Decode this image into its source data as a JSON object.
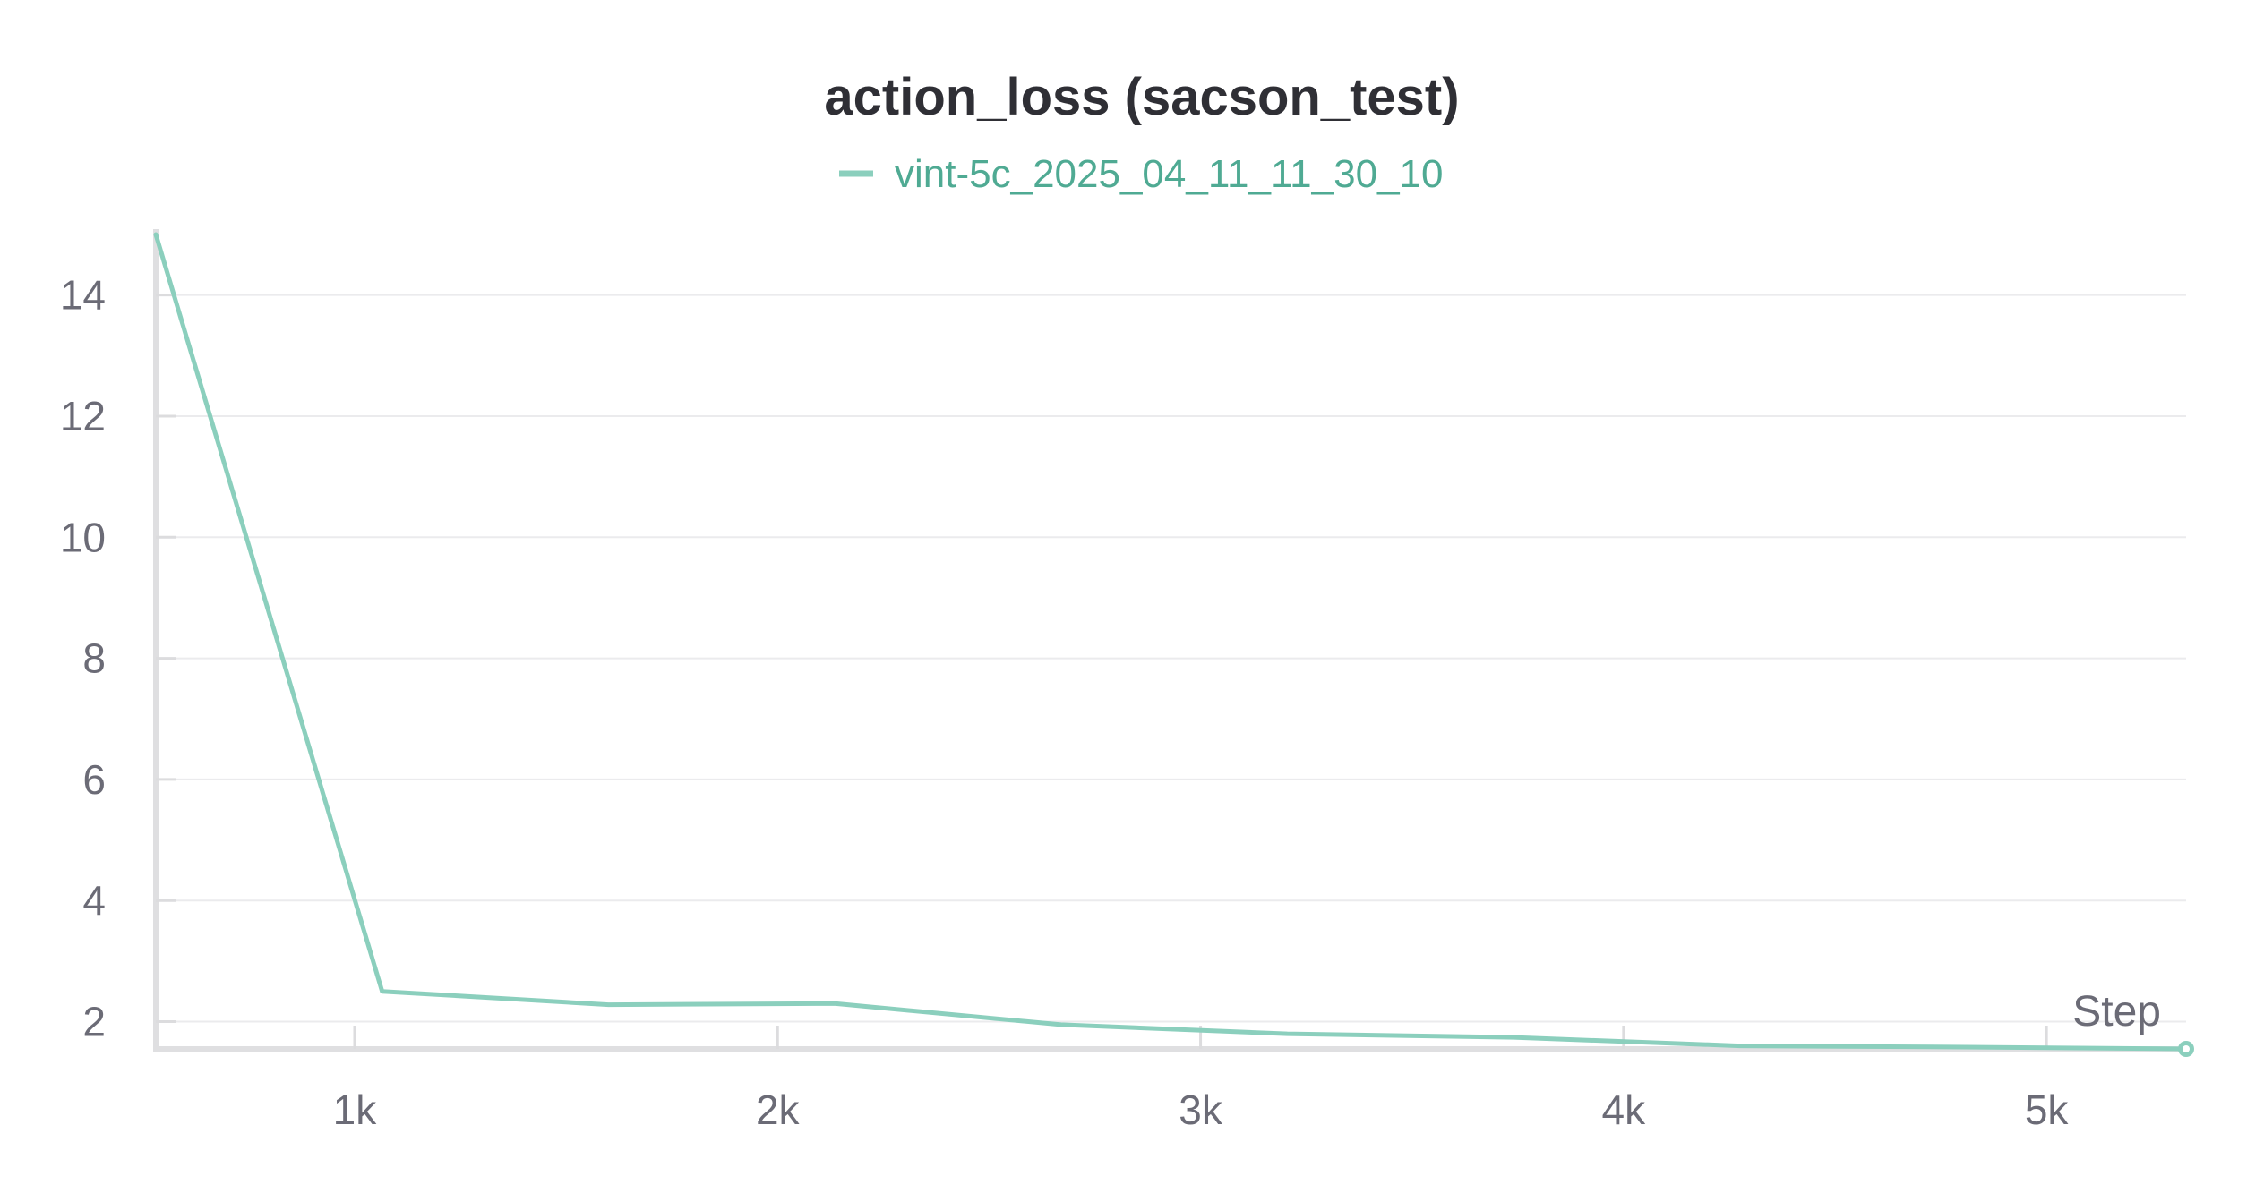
{
  "chart_data": {
    "type": "line",
    "title": "action_loss (sacson_test)",
    "xlabel": "Step",
    "ylabel": "",
    "xlim": [
      530,
      5330
    ],
    "ylim": [
      1.55,
      15.0
    ],
    "x_ticks": [
      1000,
      2000,
      3000,
      4000,
      5000
    ],
    "x_tick_labels": [
      "1k",
      "2k",
      "3k",
      "4k",
      "5k"
    ],
    "y_ticks": [
      2,
      4,
      6,
      8,
      10,
      12,
      14
    ],
    "y_tick_labels": [
      "2",
      "4",
      "6",
      "8",
      "10",
      "12",
      "14"
    ],
    "grid": true,
    "legend_position": "top-center",
    "series": [
      {
        "name": "vint-5c_2025_04_11_11_30_10",
        "color": "#8bcfbd",
        "legend_text_color": "#4faa93",
        "x": [
          530,
          1065,
          1600,
          2135,
          2670,
          3205,
          3740,
          4275,
          4810,
          5330
        ],
        "values": [
          15.0,
          2.5,
          2.28,
          2.3,
          1.95,
          1.8,
          1.74,
          1.6,
          1.58,
          1.55
        ]
      }
    ]
  }
}
